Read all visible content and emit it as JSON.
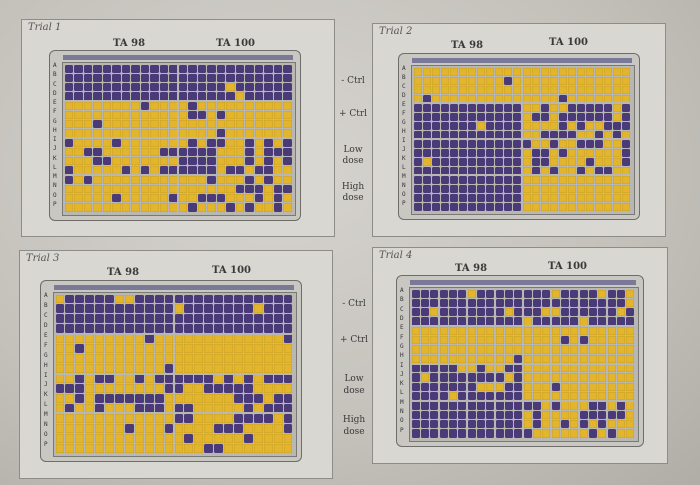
{
  "trials": [
    {
      "label": "Trial 1",
      "ta98": "TA 98",
      "ta100": "TA 100"
    },
    {
      "label": "Trial 2",
      "ta98": "TA 98",
      "ta100": "TA 100"
    },
    {
      "label": "Trial 3",
      "ta98": "TA 98",
      "ta100": "TA 100"
    },
    {
      "label": "Trial 4",
      "ta98": "TA 98",
      "ta100": "TA 100"
    }
  ],
  "conditions": {
    "neg_ctrl": "- Ctrl",
    "pos_ctrl": "+ Ctrl",
    "low_dose": [
      "Low",
      "dose"
    ],
    "high_dose": [
      "High",
      "dose"
    ]
  },
  "rows": [
    "A",
    "B",
    "C",
    "D",
    "E",
    "F",
    "G",
    "H",
    "I",
    "J",
    "K",
    "L",
    "M",
    "N",
    "O",
    "P"
  ],
  "colors": {
    "purple": "#4a3a78",
    "yellow": "#e2b52c"
  }
}
